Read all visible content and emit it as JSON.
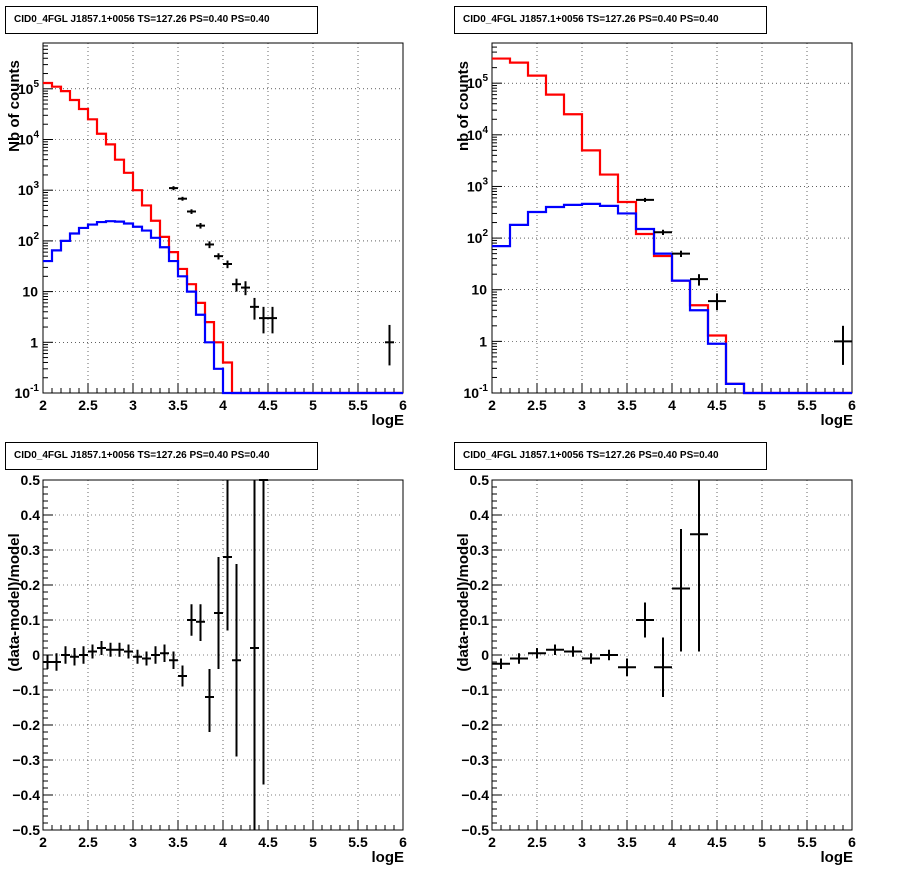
{
  "chart_data": [
    {
      "id": "p1",
      "type": "histogram",
      "title": "CID0_4FGL J1857.1+0056 TS=127.26 PS=0.40 PS=0.40",
      "xlabel": "logE",
      "ylabel": "Nb of counts",
      "xlim": [
        2,
        6
      ],
      "ylim": [
        0.1,
        800000
      ],
      "log_y": true,
      "grid": true,
      "x_ticks": [
        "2",
        "2.5",
        "3",
        "3.5",
        "4",
        "4.5",
        "5",
        "5.5",
        "6"
      ],
      "y_ticks": [
        "10^-1",
        "1",
        "10",
        "10^2",
        "10^3",
        "10^4",
        "10^5"
      ],
      "bin_edges_start": 2.0,
      "bin_width": 0.1,
      "series": [
        {
          "color": "#ff0000",
          "kind": "step",
          "values": [
            130000,
            110000,
            90000,
            60000,
            40000,
            25000,
            13000,
            8000,
            4000,
            2200,
            1000,
            500,
            250,
            120,
            60,
            28,
            14,
            6,
            2.5,
            1,
            0.4,
            0.1,
            0.1,
            0.1,
            0.1,
            0.1,
            0.1,
            0.1,
            0.1,
            0.1,
            0.1,
            0.1,
            0.1,
            0.1,
            0.1,
            0.1,
            0.1,
            0.1,
            0.1,
            0.1
          ]
        },
        {
          "color": "#0000ff",
          "kind": "step",
          "values": [
            40,
            65,
            100,
            140,
            180,
            210,
            235,
            245,
            240,
            220,
            190,
            160,
            115,
            75,
            40,
            20,
            10,
            3.5,
            1,
            0.3,
            0.1,
            0.1,
            0.1,
            0.1,
            0.1,
            0.1,
            0.1,
            0.1,
            0.1,
            0.1,
            0.1,
            0.1,
            0.1,
            0.1,
            0.1,
            0.1,
            0.1,
            0.1,
            0.1,
            0.1
          ]
        },
        {
          "color": "#000000",
          "kind": "points",
          "points": [
            [
              3.45,
              1100,
              0.05,
              1000,
              1200
            ],
            [
              3.55,
              680,
              0.05,
              620,
              740
            ],
            [
              3.65,
              380,
              0.05,
              340,
              420
            ],
            [
              3.75,
              200,
              0.05,
              175,
              225
            ],
            [
              3.85,
              85,
              0.05,
              72,
              98
            ],
            [
              3.95,
              50,
              0.05,
              43,
              57
            ],
            [
              4.05,
              35,
              0.05,
              29,
              41
            ],
            [
              4.15,
              14,
              0.05,
              10,
              18
            ],
            [
              4.25,
              12,
              0.05,
              8.5,
              16
            ],
            [
              4.35,
              5,
              0.05,
              2.8,
              7.5
            ],
            [
              4.45,
              3,
              0.05,
              1.5,
              5
            ],
            [
              4.55,
              3,
              0.05,
              1.5,
              5
            ],
            [
              5.85,
              1,
              0.05,
              0.35,
              2.2
            ]
          ]
        }
      ]
    },
    {
      "id": "p2",
      "type": "histogram",
      "title": "CID0_4FGL J1857.1+0056 TS=127.26 PS=0.40 PS=0.40",
      "xlabel": "logE",
      "ylabel": "nb of counts",
      "xlim": [
        2,
        6
      ],
      "ylim": [
        0.1,
        600000
      ],
      "log_y": true,
      "grid": true,
      "x_ticks": [
        "2",
        "2.5",
        "3",
        "3.5",
        "4",
        "4.5",
        "5",
        "5.5",
        "6"
      ],
      "y_ticks": [
        "10^-1",
        "1",
        "10",
        "10^2",
        "10^3",
        "10^4",
        "10^5"
      ],
      "bin_edges_start": 2.0,
      "bin_width": 0.2,
      "series": [
        {
          "color": "#ff0000",
          "kind": "step",
          "values": [
            300000,
            250000,
            140000,
            60000,
            25000,
            5000,
            1700,
            500,
            120,
            45,
            15,
            5,
            1.3,
            0.15,
            0.1,
            0.1,
            0.1,
            0.1,
            0.1,
            0.1
          ]
        },
        {
          "color": "#0000ff",
          "kind": "step",
          "values": [
            70,
            180,
            320,
            400,
            440,
            460,
            420,
            300,
            150,
            50,
            15,
            4,
            0.9,
            0.15,
            0.1,
            0.1,
            0.1,
            0.1,
            0.1,
            0.1
          ]
        },
        {
          "color": "#000000",
          "kind": "points",
          "points": [
            [
              3.7,
              550,
              0.1,
              500,
              600
            ],
            [
              3.9,
              130,
              0.1,
              115,
              145
            ],
            [
              4.1,
              50,
              0.1,
              43,
              57
            ],
            [
              4.3,
              16,
              0.1,
              12,
              20
            ],
            [
              4.5,
              6,
              0.1,
              4,
              8.5
            ],
            [
              5.9,
              1,
              0.1,
              0.35,
              2
            ]
          ]
        }
      ]
    },
    {
      "id": "p3",
      "type": "scatter",
      "title": "CID0_4FGL J1857.1+0056 TS=127.26 PS=0.40 PS=0.40",
      "xlabel": "logE",
      "ylabel": "(data-model)/model",
      "xlim": [
        2,
        6
      ],
      "ylim": [
        -0.5,
        0.5
      ],
      "log_y": false,
      "grid": true,
      "x_ticks": [
        "2",
        "2.5",
        "3",
        "3.5",
        "4",
        "4.5",
        "5",
        "5.5",
        "6"
      ],
      "y_ticks": [
        "-0.5",
        "-0.4",
        "-0.3",
        "-0.2",
        "-0.1",
        "0",
        "0.1",
        "0.2",
        "0.3",
        "0.4",
        "0.5"
      ],
      "series": [
        {
          "color": "#000000",
          "kind": "points",
          "points": [
            [
              2.05,
              -0.02,
              0.05,
              -0.04,
              0.0
            ],
            [
              2.15,
              -0.02,
              0.05,
              -0.045,
              0.005
            ],
            [
              2.25,
              0.0,
              0.05,
              -0.025,
              0.025
            ],
            [
              2.35,
              -0.005,
              0.05,
              -0.03,
              0.02
            ],
            [
              2.45,
              0.0,
              0.05,
              -0.025,
              0.025
            ],
            [
              2.55,
              0.01,
              0.05,
              -0.01,
              0.03
            ],
            [
              2.65,
              0.02,
              0.05,
              0.0,
              0.04
            ],
            [
              2.75,
              0.015,
              0.05,
              -0.005,
              0.035
            ],
            [
              2.85,
              0.015,
              0.05,
              -0.005,
              0.035
            ],
            [
              2.95,
              0.01,
              0.05,
              -0.01,
              0.03
            ],
            [
              3.05,
              -0.005,
              0.05,
              -0.025,
              0.015
            ],
            [
              3.15,
              -0.01,
              0.05,
              -0.03,
              0.01
            ],
            [
              3.25,
              0.0,
              0.05,
              -0.025,
              0.025
            ],
            [
              3.35,
              0.005,
              0.05,
              -0.02,
              0.03
            ],
            [
              3.45,
              -0.015,
              0.05,
              -0.04,
              0.01
            ],
            [
              3.55,
              -0.06,
              0.05,
              -0.09,
              -0.03
            ],
            [
              3.65,
              0.1,
              0.05,
              0.055,
              0.145
            ],
            [
              3.75,
              0.095,
              0.05,
              0.04,
              0.145
            ],
            [
              3.85,
              -0.12,
              0.05,
              -0.22,
              -0.04
            ],
            [
              3.95,
              0.12,
              0.05,
              -0.04,
              0.28
            ],
            [
              4.05,
              0.28,
              0.05,
              0.07,
              0.5
            ],
            [
              4.15,
              -0.015,
              0.05,
              -0.29,
              0.26
            ],
            [
              4.35,
              0.02,
              0.05,
              -0.5,
              0.5
            ],
            [
              4.45,
              0.5,
              0.05,
              -0.37,
              0.5
            ]
          ]
        }
      ]
    },
    {
      "id": "p4",
      "type": "scatter",
      "title": "CID0_4FGL J1857.1+0056 TS=127.26 PS=0.40 PS=0.40",
      "xlabel": "logE",
      "ylabel": "(data-model)/model",
      "xlim": [
        2,
        6
      ],
      "ylim": [
        -0.5,
        0.5
      ],
      "log_y": false,
      "grid": true,
      "x_ticks": [
        "2",
        "2.5",
        "3",
        "3.5",
        "4",
        "4.5",
        "5",
        "5.5",
        "6"
      ],
      "y_ticks": [
        "-0.5",
        "-0.4",
        "-0.3",
        "-0.2",
        "-0.1",
        "0",
        "0.1",
        "0.2",
        "0.3",
        "0.4",
        "0.5"
      ],
      "series": [
        {
          "color": "#000000",
          "kind": "points",
          "points": [
            [
              2.1,
              -0.025,
              0.1,
              -0.04,
              -0.01
            ],
            [
              2.3,
              -0.01,
              0.1,
              -0.025,
              0.005
            ],
            [
              2.5,
              0.005,
              0.1,
              -0.01,
              0.02
            ],
            [
              2.7,
              0.015,
              0.1,
              0.0,
              0.03
            ],
            [
              2.9,
              0.01,
              0.1,
              -0.005,
              0.025
            ],
            [
              3.1,
              -0.01,
              0.1,
              -0.025,
              0.005
            ],
            [
              3.3,
              0.0,
              0.1,
              -0.015,
              0.015
            ],
            [
              3.5,
              -0.035,
              0.1,
              -0.06,
              -0.01
            ],
            [
              3.7,
              0.1,
              0.1,
              0.05,
              0.15
            ],
            [
              3.9,
              -0.035,
              0.1,
              -0.12,
              0.05
            ],
            [
              4.1,
              0.19,
              0.1,
              0.01,
              0.36
            ],
            [
              4.3,
              0.345,
              0.1,
              0.01,
              0.5
            ]
          ]
        }
      ]
    }
  ]
}
